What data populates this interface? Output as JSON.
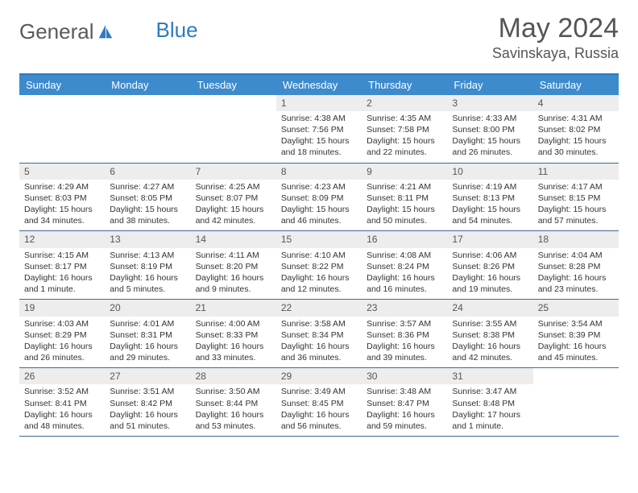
{
  "brand": {
    "part1": "General",
    "part2": "Blue"
  },
  "title": "May 2024",
  "location": "Savinskaya, Russia",
  "colors": {
    "header_bg": "#3d8bcd",
    "header_border": "#2f7bbf",
    "row_border": "#3d6a95",
    "daynum_bg": "#ededed",
    "text": "#333333"
  },
  "day_names": [
    "Sunday",
    "Monday",
    "Tuesday",
    "Wednesday",
    "Thursday",
    "Friday",
    "Saturday"
  ],
  "weeks": [
    [
      {
        "blank": true
      },
      {
        "blank": true
      },
      {
        "blank": true
      },
      {
        "n": "1",
        "sr": "4:38 AM",
        "ss": "7:56 PM",
        "dl": "15 hours and 18 minutes."
      },
      {
        "n": "2",
        "sr": "4:35 AM",
        "ss": "7:58 PM",
        "dl": "15 hours and 22 minutes."
      },
      {
        "n": "3",
        "sr": "4:33 AM",
        "ss": "8:00 PM",
        "dl": "15 hours and 26 minutes."
      },
      {
        "n": "4",
        "sr": "4:31 AM",
        "ss": "8:02 PM",
        "dl": "15 hours and 30 minutes."
      }
    ],
    [
      {
        "n": "5",
        "sr": "4:29 AM",
        "ss": "8:03 PM",
        "dl": "15 hours and 34 minutes."
      },
      {
        "n": "6",
        "sr": "4:27 AM",
        "ss": "8:05 PM",
        "dl": "15 hours and 38 minutes."
      },
      {
        "n": "7",
        "sr": "4:25 AM",
        "ss": "8:07 PM",
        "dl": "15 hours and 42 minutes."
      },
      {
        "n": "8",
        "sr": "4:23 AM",
        "ss": "8:09 PM",
        "dl": "15 hours and 46 minutes."
      },
      {
        "n": "9",
        "sr": "4:21 AM",
        "ss": "8:11 PM",
        "dl": "15 hours and 50 minutes."
      },
      {
        "n": "10",
        "sr": "4:19 AM",
        "ss": "8:13 PM",
        "dl": "15 hours and 54 minutes."
      },
      {
        "n": "11",
        "sr": "4:17 AM",
        "ss": "8:15 PM",
        "dl": "15 hours and 57 minutes."
      }
    ],
    [
      {
        "n": "12",
        "sr": "4:15 AM",
        "ss": "8:17 PM",
        "dl": "16 hours and 1 minute."
      },
      {
        "n": "13",
        "sr": "4:13 AM",
        "ss": "8:19 PM",
        "dl": "16 hours and 5 minutes."
      },
      {
        "n": "14",
        "sr": "4:11 AM",
        "ss": "8:20 PM",
        "dl": "16 hours and 9 minutes."
      },
      {
        "n": "15",
        "sr": "4:10 AM",
        "ss": "8:22 PM",
        "dl": "16 hours and 12 minutes."
      },
      {
        "n": "16",
        "sr": "4:08 AM",
        "ss": "8:24 PM",
        "dl": "16 hours and 16 minutes."
      },
      {
        "n": "17",
        "sr": "4:06 AM",
        "ss": "8:26 PM",
        "dl": "16 hours and 19 minutes."
      },
      {
        "n": "18",
        "sr": "4:04 AM",
        "ss": "8:28 PM",
        "dl": "16 hours and 23 minutes."
      }
    ],
    [
      {
        "n": "19",
        "sr": "4:03 AM",
        "ss": "8:29 PM",
        "dl": "16 hours and 26 minutes."
      },
      {
        "n": "20",
        "sr": "4:01 AM",
        "ss": "8:31 PM",
        "dl": "16 hours and 29 minutes."
      },
      {
        "n": "21",
        "sr": "4:00 AM",
        "ss": "8:33 PM",
        "dl": "16 hours and 33 minutes."
      },
      {
        "n": "22",
        "sr": "3:58 AM",
        "ss": "8:34 PM",
        "dl": "16 hours and 36 minutes."
      },
      {
        "n": "23",
        "sr": "3:57 AM",
        "ss": "8:36 PM",
        "dl": "16 hours and 39 minutes."
      },
      {
        "n": "24",
        "sr": "3:55 AM",
        "ss": "8:38 PM",
        "dl": "16 hours and 42 minutes."
      },
      {
        "n": "25",
        "sr": "3:54 AM",
        "ss": "8:39 PM",
        "dl": "16 hours and 45 minutes."
      }
    ],
    [
      {
        "n": "26",
        "sr": "3:52 AM",
        "ss": "8:41 PM",
        "dl": "16 hours and 48 minutes."
      },
      {
        "n": "27",
        "sr": "3:51 AM",
        "ss": "8:42 PM",
        "dl": "16 hours and 51 minutes."
      },
      {
        "n": "28",
        "sr": "3:50 AM",
        "ss": "8:44 PM",
        "dl": "16 hours and 53 minutes."
      },
      {
        "n": "29",
        "sr": "3:49 AM",
        "ss": "8:45 PM",
        "dl": "16 hours and 56 minutes."
      },
      {
        "n": "30",
        "sr": "3:48 AM",
        "ss": "8:47 PM",
        "dl": "16 hours and 59 minutes."
      },
      {
        "n": "31",
        "sr": "3:47 AM",
        "ss": "8:48 PM",
        "dl": "17 hours and 1 minute."
      },
      {
        "blank": true
      }
    ]
  ],
  "labels": {
    "sunrise": "Sunrise:",
    "sunset": "Sunset:",
    "daylight": "Daylight:"
  }
}
